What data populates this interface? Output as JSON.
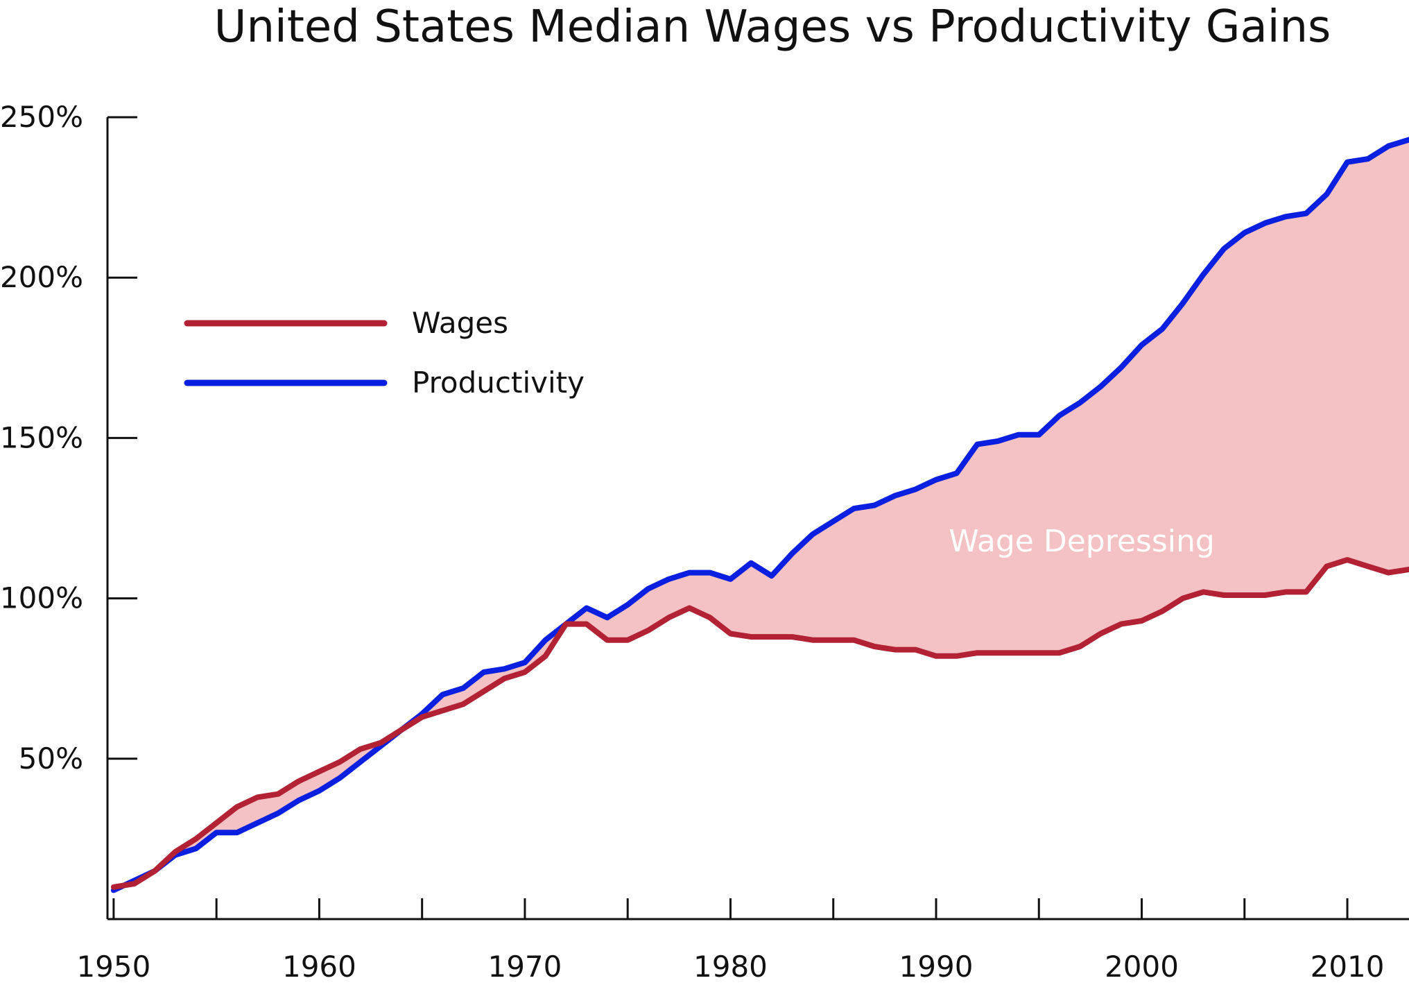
{
  "chart_data": {
    "type": "line",
    "title": "United States Median Wages vs Productivity Gains",
    "xlabel": "",
    "ylabel": "",
    "xlim": [
      1949.7,
      2013
    ],
    "ylim": [
      0,
      250
    ],
    "x_ticks": [
      1950,
      1960,
      1970,
      1980,
      1990,
      2000,
      2010
    ],
    "x_tick_labels": [
      "1950",
      "1960",
      "1970",
      "1980",
      "1990",
      "2000",
      "2010"
    ],
    "y_ticks": [
      50,
      100,
      150,
      200,
      250
    ],
    "y_tick_labels": [
      "50%",
      "100%",
      "150%",
      "200%",
      "250%"
    ],
    "x_minor_ticks": [
      1955,
      1965,
      1975,
      1985,
      1995,
      2005
    ],
    "legend_position": "upper-left",
    "grid": false,
    "annotation": "Wage Depressing",
    "x": [
      1950,
      1951,
      1952,
      1953,
      1954,
      1955,
      1956,
      1957,
      1958,
      1959,
      1960,
      1961,
      1962,
      1963,
      1964,
      1965,
      1966,
      1967,
      1968,
      1969,
      1970,
      1971,
      1972,
      1973,
      1974,
      1975,
      1976,
      1977,
      1978,
      1979,
      1980,
      1981,
      1982,
      1983,
      1984,
      1985,
      1986,
      1987,
      1988,
      1989,
      1990,
      1991,
      1992,
      1993,
      1994,
      1995,
      1996,
      1997,
      1998,
      1999,
      2000,
      2001,
      2002,
      2003,
      2004,
      2005,
      2006,
      2007,
      2008,
      2009,
      2010,
      2011,
      2012,
      2013
    ],
    "series": [
      {
        "name": "Wages",
        "color": "#b22234",
        "values": [
          10,
          11,
          15,
          21,
          25,
          30,
          35,
          38,
          39,
          43,
          46,
          49,
          53,
          55,
          59,
          63,
          65,
          67,
          71,
          75,
          77,
          82,
          92,
          92,
          87,
          87,
          90,
          94,
          97,
          94,
          89,
          88,
          88,
          88,
          87,
          87,
          87,
          85,
          84,
          84,
          82,
          82,
          83,
          83,
          83,
          83,
          83,
          85,
          89,
          92,
          93,
          96,
          100,
          102,
          101,
          101,
          101,
          102,
          102,
          110,
          112,
          110,
          108,
          109
        ],
        "fill_between": "Productivity"
      },
      {
        "name": "Productivity",
        "color": "#0a1fe0",
        "values": [
          9,
          12,
          15,
          20,
          22,
          27,
          27,
          30,
          33,
          37,
          40,
          44,
          49,
          54,
          59,
          64,
          70,
          72,
          77,
          78,
          80,
          87,
          92,
          97,
          94,
          98,
          103,
          106,
          108,
          108,
          106,
          111,
          107,
          114,
          120,
          124,
          128,
          129,
          132,
          134,
          137,
          139,
          148,
          149,
          151,
          151,
          157,
          161,
          166,
          172,
          179,
          184,
          192,
          201,
          209,
          214,
          217,
          219,
          220,
          226,
          236,
          237,
          241,
          243
        ]
      }
    ],
    "colors": {
      "wages": "#b22234",
      "productivity": "#0a1fe0",
      "gap_fill": "#f4c2c4",
      "axis": "#111111"
    }
  }
}
